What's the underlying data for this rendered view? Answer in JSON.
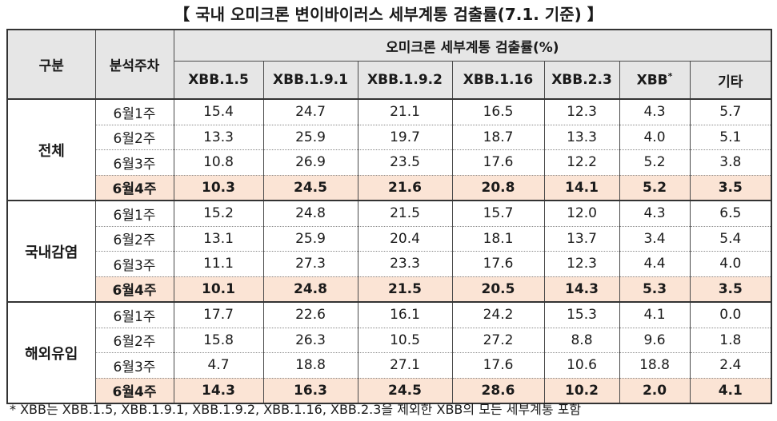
{
  "title": "【 국내 오미크론 변이바이러스 세부계통 검출률(7.1. 기준) 】",
  "header": {
    "group_label": "구분",
    "week_label": "분석주차",
    "span_label": "오미크론 세부계통 검출률(%)",
    "columns": [
      "XBB.1.5",
      "XBB.1.9.1",
      "XBB.1.9.2",
      "XBB.1.16",
      "XBB.2.3",
      "XBB",
      "기타"
    ],
    "xbb_marker": "*"
  },
  "groups": [
    {
      "name": "전체",
      "rows": [
        {
          "week": "6월1주",
          "values": [
            "15.4",
            "24.7",
            "21.1",
            "16.5",
            "12.3",
            "4.3",
            "5.7"
          ]
        },
        {
          "week": "6월2주",
          "values": [
            "13.3",
            "25.9",
            "19.7",
            "18.7",
            "13.3",
            "4.0",
            "5.1"
          ]
        },
        {
          "week": "6월3주",
          "values": [
            "10.8",
            "26.9",
            "23.5",
            "17.6",
            "12.2",
            "5.2",
            "3.8"
          ]
        },
        {
          "week": "6월4주",
          "values": [
            "10.3",
            "24.5",
            "21.6",
            "20.8",
            "14.1",
            "5.2",
            "3.5"
          ]
        }
      ]
    },
    {
      "name": "국내감염",
      "rows": [
        {
          "week": "6월1주",
          "values": [
            "15.2",
            "24.8",
            "21.5",
            "15.7",
            "12.0",
            "4.3",
            "6.5"
          ]
        },
        {
          "week": "6월2주",
          "values": [
            "13.1",
            "25.9",
            "20.4",
            "18.1",
            "13.7",
            "3.4",
            "5.4"
          ]
        },
        {
          "week": "6월3주",
          "values": [
            "11.1",
            "27.3",
            "23.3",
            "17.6",
            "12.3",
            "4.4",
            "4.0"
          ]
        },
        {
          "week": "6월4주",
          "values": [
            "10.1",
            "24.8",
            "21.5",
            "20.5",
            "14.3",
            "5.3",
            "3.5"
          ]
        }
      ]
    },
    {
      "name": "해외유입",
      "rows": [
        {
          "week": "6월1주",
          "values": [
            "17.7",
            "22.6",
            "16.1",
            "24.2",
            "15.3",
            "4.1",
            "0.0"
          ]
        },
        {
          "week": "6월2주",
          "values": [
            "15.8",
            "26.3",
            "10.5",
            "27.2",
            "8.8",
            "9.6",
            "1.8"
          ]
        },
        {
          "week": "6월3주",
          "values": [
            "4.7",
            "18.8",
            "27.1",
            "17.6",
            "10.6",
            "18.8",
            "2.4"
          ]
        },
        {
          "week": "6월4주",
          "values": [
            "14.3",
            "16.3",
            "24.5",
            "28.6",
            "10.2",
            "2.0",
            "4.1"
          ]
        }
      ]
    }
  ],
  "footnote": "* XBB는 XBB.1.5, XBB.1.9.1, XBB.1.9.2, XBB.1.16, XBB.2.3을 제외한 XBB의 모든 세부계통 포함",
  "colors": {
    "header_bg": "#e6e6e6",
    "highlight_bg": "#fbe4d5"
  }
}
